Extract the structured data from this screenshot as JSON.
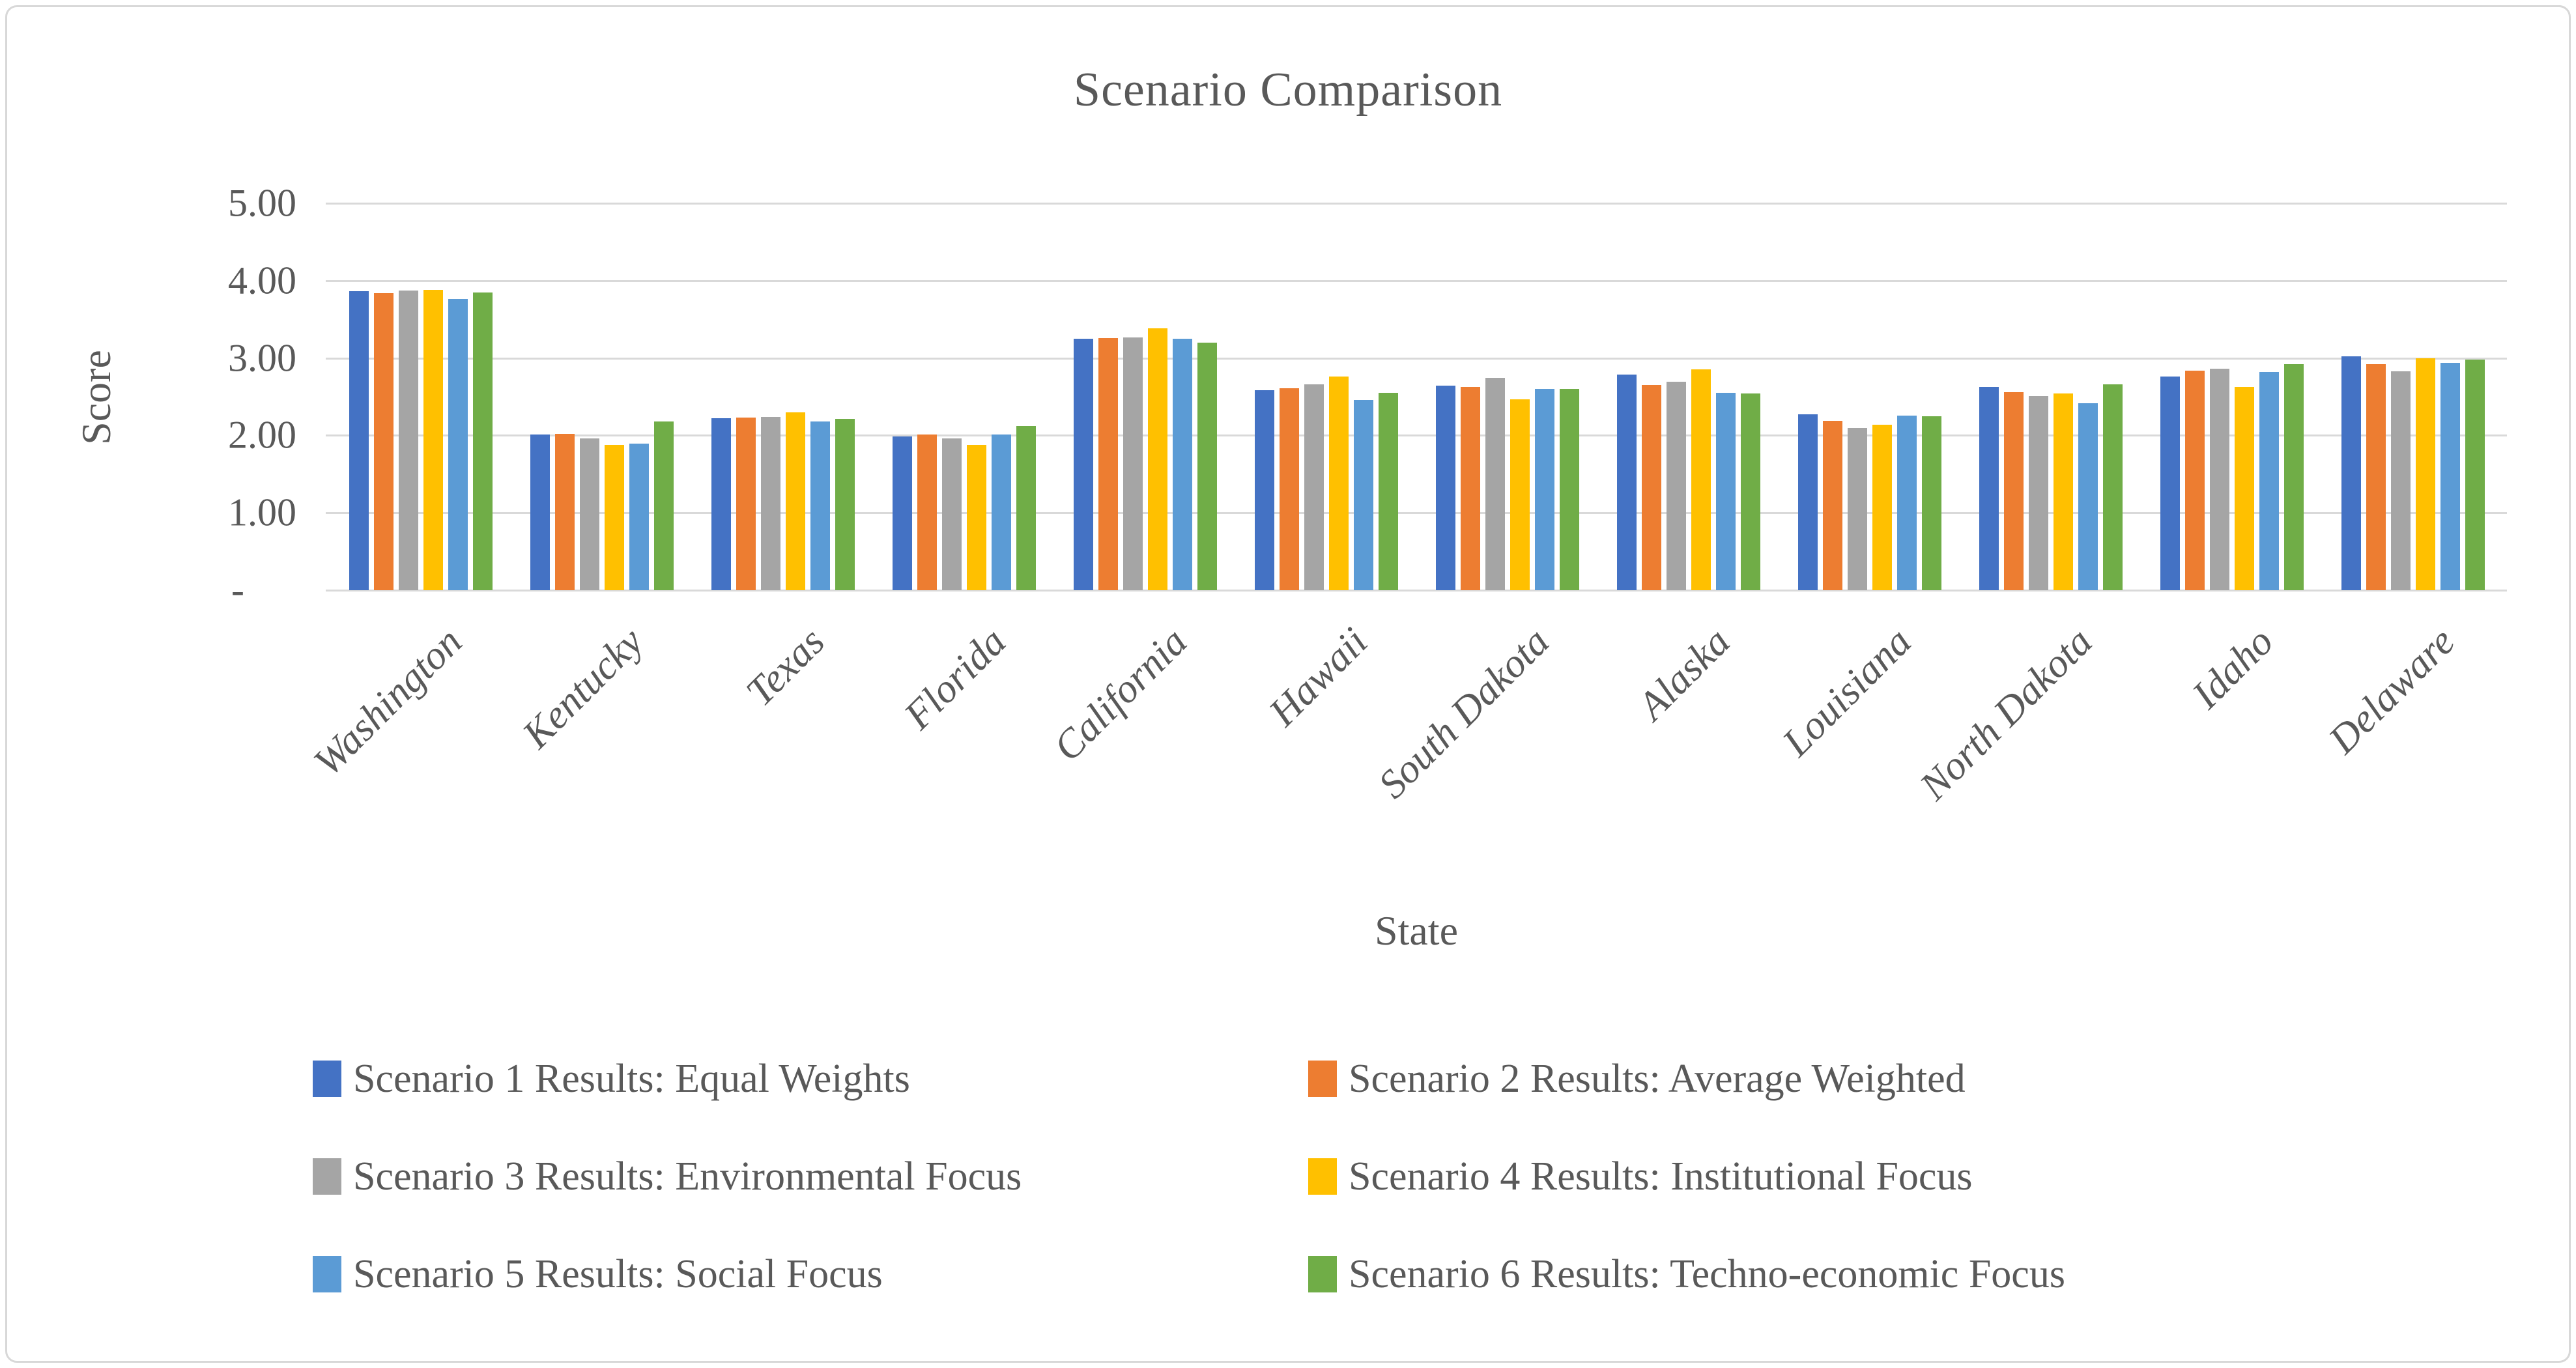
{
  "chart_data": {
    "type": "bar",
    "title": "Scenario Comparison",
    "xlabel": "State",
    "ylabel": "Score",
    "ylim": [
      0,
      5
    ],
    "ytick_labels": [
      "-",
      "1.00",
      "2.00",
      "3.00",
      "4.00",
      "5.00"
    ],
    "grid": true,
    "legend_position": "bottom, two columns, three rows",
    "text_color": "#595959",
    "gridline_color": "#d9d9d9",
    "categories": [
      "Washington",
      "Kentucky",
      "Texas",
      "Florida",
      "California",
      "Hawaii",
      "South Dakota",
      "Alaska",
      "Louisiana",
      "North Dakota",
      "Idaho",
      "Delaware"
    ],
    "series": [
      {
        "name": "Scenario 1 Results: Equal Weights",
        "color": "#4472C4",
        "values": [
          3.86,
          2.01,
          2.22,
          1.99,
          3.25,
          2.58,
          2.64,
          2.79,
          2.27,
          2.63,
          2.76,
          3.02
        ]
      },
      {
        "name": "Scenario 2 Results: Average Weighted",
        "color": "#ED7D31",
        "values": [
          3.84,
          2.02,
          2.23,
          2.01,
          3.26,
          2.61,
          2.63,
          2.65,
          2.19,
          2.56,
          2.84,
          2.92
        ]
      },
      {
        "name": "Scenario 3 Results: Environmental Focus",
        "color": "#A5A5A5",
        "values": [
          3.87,
          1.96,
          2.24,
          1.96,
          3.27,
          2.66,
          2.74,
          2.69,
          2.1,
          2.51,
          2.86,
          2.83
        ]
      },
      {
        "name": "Scenario 4 Results: Institutional Focus",
        "color": "#FFC000",
        "values": [
          3.88,
          1.88,
          2.3,
          1.88,
          3.38,
          2.76,
          2.47,
          2.85,
          2.14,
          2.54,
          2.63,
          3.0
        ]
      },
      {
        "name": "Scenario 5 Results: Social Focus",
        "color": "#5B9BD5",
        "values": [
          3.76,
          1.89,
          2.18,
          2.01,
          3.25,
          2.46,
          2.6,
          2.55,
          2.26,
          2.42,
          2.82,
          2.94
        ]
      },
      {
        "name": "Scenario 6 Results: Techno-economic Focus",
        "color": "#70AD47",
        "values": [
          3.85,
          2.18,
          2.21,
          2.12,
          3.2,
          2.55,
          2.6,
          2.54,
          2.25,
          2.66,
          2.92,
          2.98
        ]
      }
    ]
  }
}
